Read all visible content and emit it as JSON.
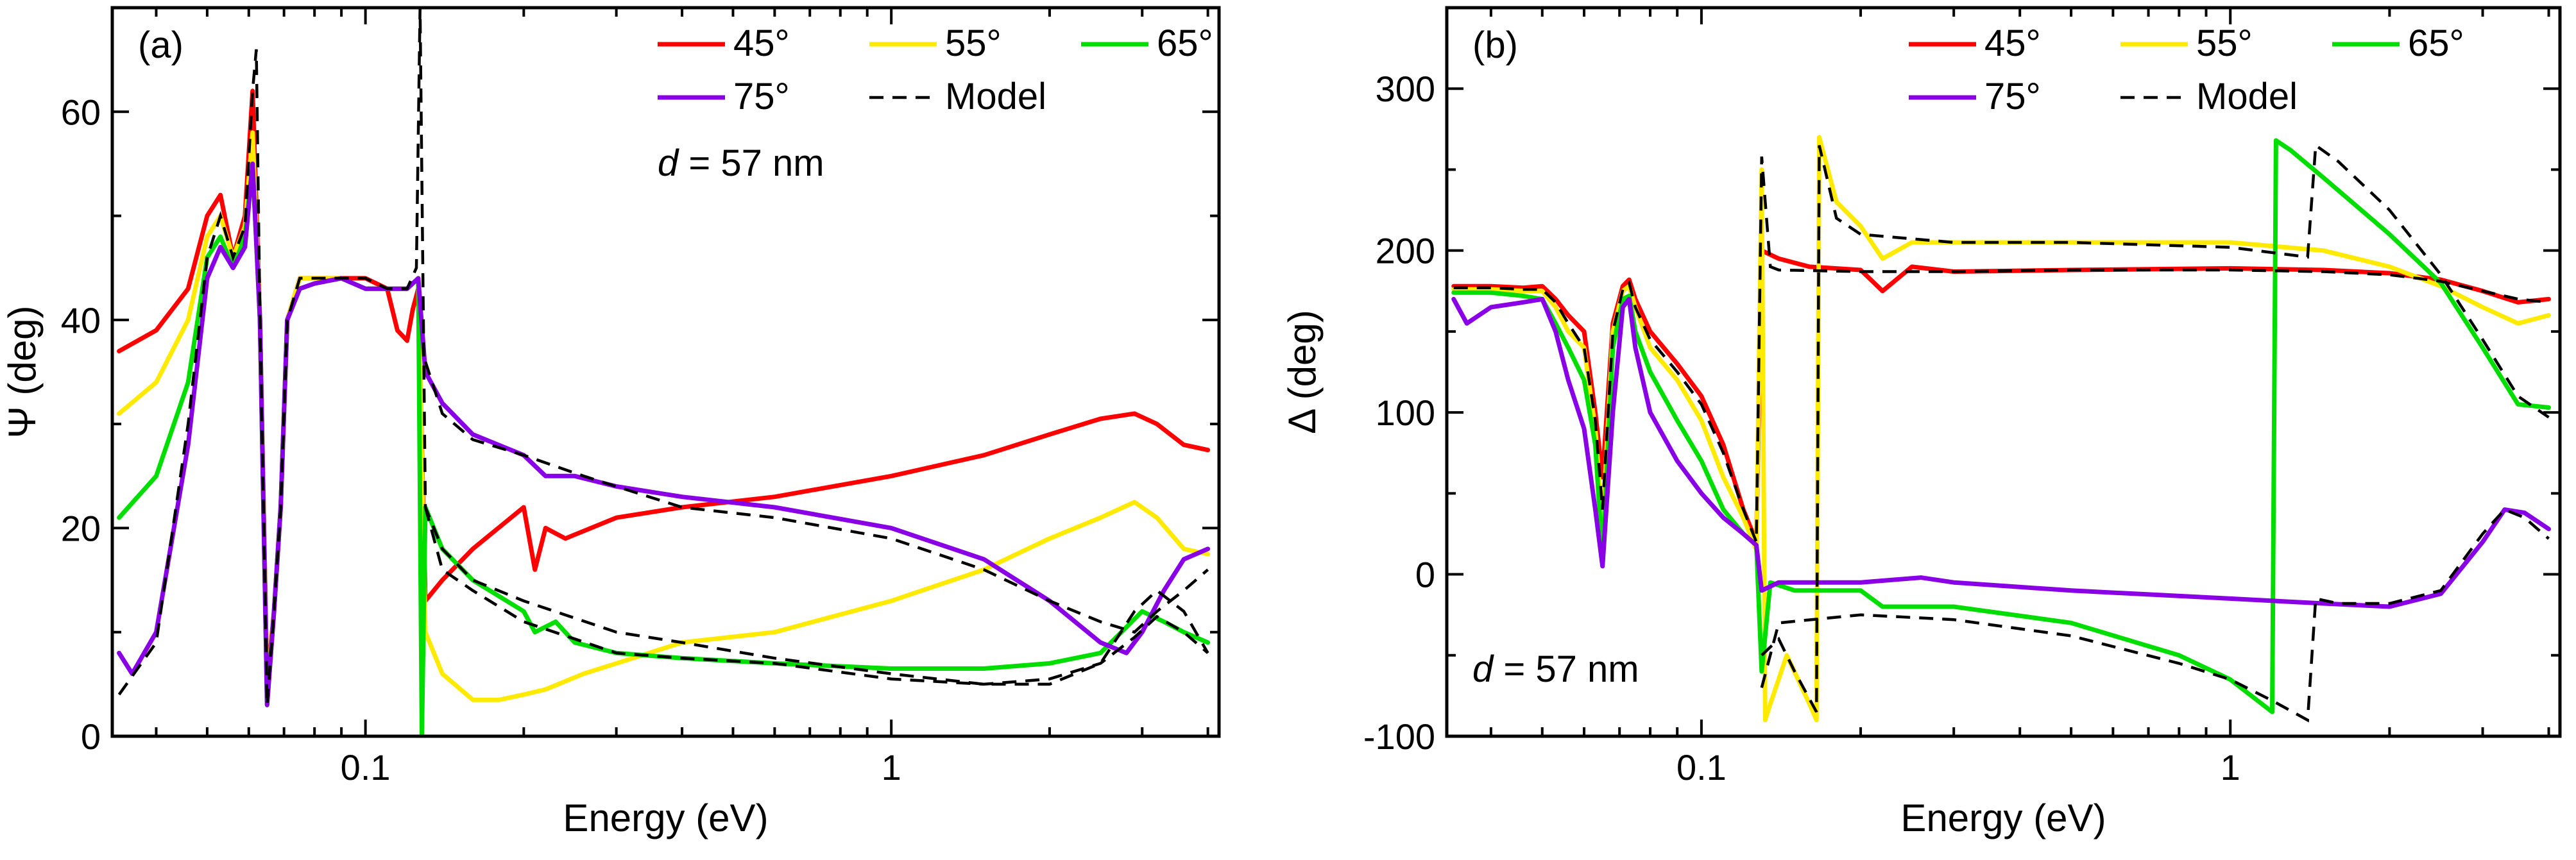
{
  "chart_data": [
    {
      "type": "line",
      "panel_label": "(a)",
      "xlabel": "Energy (eV)",
      "ylabel": "Ψ (deg)",
      "xscale": "log",
      "xlim": [
        0.033,
        4.2
      ],
      "ylim": [
        0,
        70
      ],
      "xticks": [
        {
          "value": 0.1,
          "label": "0.1"
        },
        {
          "value": 1,
          "label": "1"
        }
      ],
      "yticks": [
        {
          "value": 0,
          "label": "0"
        },
        {
          "value": 20,
          "label": "20"
        },
        {
          "value": 40,
          "label": "40"
        },
        {
          "value": 60,
          "label": "60"
        }
      ],
      "annotation": {
        "prefix": "d",
        "text": " = 57 nm"
      },
      "legend": [
        {
          "label": "45°",
          "color": "#ff0000",
          "style": "solid"
        },
        {
          "label": "55°",
          "color": "#ffea00",
          "style": "solid"
        },
        {
          "label": "65°",
          "color": "#00dd00",
          "style": "solid"
        },
        {
          "label": "75°",
          "color": "#8a00e6",
          "style": "solid"
        },
        {
          "label": "Model",
          "color": "#000000",
          "style": "dashed"
        }
      ],
      "series": [
        {
          "name": "45°",
          "color": "#ff0000",
          "x": [
            0.034,
            0.04,
            0.046,
            0.05,
            0.053,
            0.056,
            0.059,
            0.061,
            0.063,
            0.065,
            0.067,
            0.069,
            0.071,
            0.075,
            0.08,
            0.09,
            0.1,
            0.11,
            0.115,
            0.12,
            0.123,
            0.126,
            0.13,
            0.14,
            0.16,
            0.2,
            0.21,
            0.22,
            0.24,
            0.3,
            0.4,
            0.6,
            1,
            1.5,
            2,
            2.5,
            2.9,
            3.2,
            3.6,
            4.0
          ],
          "y": [
            37,
            39,
            43,
            50,
            52,
            46,
            50,
            62,
            40,
            5,
            12,
            22,
            40,
            44,
            44,
            44,
            44,
            43,
            39,
            38,
            41,
            43,
            13,
            15,
            18,
            22,
            16,
            20,
            19,
            21,
            22,
            23,
            25,
            27,
            29,
            30.5,
            31,
            30,
            28,
            27.5
          ]
        },
        {
          "name": "55°",
          "color": "#ffea00",
          "x": [
            0.034,
            0.04,
            0.046,
            0.05,
            0.053,
            0.056,
            0.059,
            0.061,
            0.063,
            0.065,
            0.067,
            0.069,
            0.071,
            0.075,
            0.08,
            0.09,
            0.1,
            0.11,
            0.12,
            0.126,
            0.13,
            0.14,
            0.16,
            0.18,
            0.2,
            0.22,
            0.26,
            0.3,
            0.4,
            0.6,
            1,
            1.5,
            2,
            2.5,
            2.9,
            3.2,
            3.6,
            4.0
          ],
          "y": [
            31,
            34,
            40,
            48,
            50,
            46,
            49,
            58,
            40,
            4,
            12,
            22,
            40,
            44,
            44,
            44,
            43,
            43,
            43,
            44,
            10,
            6,
            3.5,
            3.5,
            4,
            4.5,
            6,
            7,
            9,
            10,
            13,
            16,
            19,
            21,
            22.5,
            21,
            18,
            17.5
          ]
        },
        {
          "name": "65°",
          "color": "#00dd00",
          "x": [
            0.034,
            0.04,
            0.046,
            0.05,
            0.053,
            0.056,
            0.059,
            0.061,
            0.063,
            0.065,
            0.067,
            0.069,
            0.071,
            0.075,
            0.08,
            0.09,
            0.1,
            0.11,
            0.12,
            0.126,
            0.128,
            0.13,
            0.14,
            0.16,
            0.2,
            0.21,
            0.23,
            0.25,
            0.3,
            0.4,
            0.6,
            1,
            1.5,
            2,
            2.5,
            3.0,
            3.3,
            3.6,
            4.0
          ],
          "y": [
            21,
            25,
            34,
            46,
            48,
            45,
            48,
            55,
            40,
            3,
            12,
            22,
            40,
            43,
            43.5,
            44,
            43,
            43,
            43,
            44,
            0,
            22,
            18,
            15,
            12,
            10,
            11,
            9,
            8,
            7.5,
            7,
            6.5,
            6.5,
            7,
            8,
            12,
            11,
            10,
            9
          ]
        },
        {
          "name": "75°",
          "color": "#8a00e6",
          "x": [
            0.034,
            0.036,
            0.04,
            0.046,
            0.05,
            0.053,
            0.056,
            0.059,
            0.061,
            0.063,
            0.065,
            0.067,
            0.069,
            0.071,
            0.075,
            0.08,
            0.09,
            0.1,
            0.11,
            0.12,
            0.126,
            0.13,
            0.14,
            0.16,
            0.2,
            0.22,
            0.25,
            0.3,
            0.4,
            0.6,
            1,
            1.5,
            2,
            2.5,
            2.8,
            3.0,
            3.3,
            3.6,
            4.0
          ],
          "y": [
            8,
            6,
            10,
            28,
            44,
            47,
            45,
            47,
            55,
            40,
            3,
            12,
            22,
            40,
            43,
            43.5,
            44,
            43,
            43,
            43,
            44,
            35,
            32,
            29,
            27,
            25,
            25,
            24,
            23,
            22,
            20,
            17,
            13,
            9,
            8,
            10,
            14,
            17,
            18
          ]
        },
        {
          "name": "Model",
          "color": "#000000",
          "dashed": true,
          "x": [
            0.034,
            0.04,
            0.046,
            0.05,
            0.053,
            0.056,
            0.059,
            0.061,
            0.062,
            0.063,
            0.065,
            0.067,
            0.069,
            0.071,
            0.075,
            0.08,
            0.09,
            0.1,
            0.11,
            0.12,
            0.125,
            0.127,
            0.13,
            0.14,
            0.16,
            0.2,
            0.3,
            0.4,
            0.6,
            1,
            1.5,
            2,
            2.5,
            2.9,
            3.2,
            3.6,
            4.0
          ],
          "y": [
            4,
            9,
            30,
            46,
            50,
            46,
            49,
            62,
            66,
            40,
            3,
            12,
            22,
            40,
            44,
            44,
            44,
            44,
            43,
            43,
            45,
            70,
            22,
            18,
            15,
            13,
            10,
            9,
            7.5,
            6,
            5,
            5,
            7,
            12,
            14,
            12,
            8
          ]
        },
        {
          "name": "Model",
          "color": "#000000",
          "dashed": true,
          "x": [
            0.13,
            0.14,
            0.16,
            0.2,
            0.26,
            0.3,
            0.4,
            0.6,
            1,
            1.5,
            2,
            2.5,
            2.9,
            3.2,
            3.6,
            4.0
          ],
          "y": [
            36,
            31,
            28.5,
            27,
            25,
            24,
            22,
            21,
            19,
            16,
            13,
            11,
            10,
            12,
            14,
            16
          ]
        },
        {
          "name": "Model",
          "color": "#000000",
          "dashed": true,
          "x": [
            0.13,
            0.14,
            0.16,
            0.2,
            0.3,
            0.4,
            0.6,
            1,
            1.5,
            2,
            2.5,
            2.9,
            3.2,
            3.6,
            4.0
          ],
          "y": [
            22,
            16,
            14,
            11,
            8,
            7.5,
            7,
            5.5,
            5,
            5.5,
            7,
            9.5,
            11.5,
            10,
            8
          ]
        }
      ]
    },
    {
      "type": "line",
      "panel_label": "(b)",
      "xlabel": "Energy (eV)",
      "ylabel": "Δ (deg)",
      "xscale": "log",
      "xlim": [
        0.033,
        4.2
      ],
      "ylim": [
        -100,
        350
      ],
      "xticks": [
        {
          "value": 0.1,
          "label": "0.1"
        },
        {
          "value": 1,
          "label": "1"
        }
      ],
      "yticks": [
        {
          "value": -100,
          "label": "-100"
        },
        {
          "value": 0,
          "label": "0"
        },
        {
          "value": 100,
          "label": "100"
        },
        {
          "value": 200,
          "label": "200"
        },
        {
          "value": 300,
          "label": "300"
        }
      ],
      "annotation": {
        "prefix": "d",
        "text": " = 57 nm"
      },
      "legend": [
        {
          "label": "45°",
          "color": "#ff0000",
          "style": "solid"
        },
        {
          "label": "55°",
          "color": "#ffea00",
          "style": "solid"
        },
        {
          "label": "65°",
          "color": "#00dd00",
          "style": "solid"
        },
        {
          "label": "75°",
          "color": "#8a00e6",
          "style": "solid"
        },
        {
          "label": "Model",
          "color": "#000000",
          "style": "dashed"
        }
      ],
      "series": [
        {
          "name": "45°",
          "color": "#ff0000",
          "x": [
            0.034,
            0.04,
            0.046,
            0.05,
            0.053,
            0.056,
            0.06,
            0.063,
            0.065,
            0.068,
            0.071,
            0.073,
            0.075,
            0.08,
            0.09,
            0.1,
            0.11,
            0.12,
            0.127,
            0.13,
            0.14,
            0.16,
            0.2,
            0.22,
            0.25,
            0.3,
            0.5,
            1,
            1.5,
            2,
            2.5,
            3.0,
            3.5,
            4.0
          ],
          "y": [
            178,
            178,
            177,
            178,
            170,
            160,
            150,
            100,
            60,
            155,
            178,
            182,
            170,
            150,
            130,
            110,
            80,
            40,
            20,
            200,
            195,
            190,
            188,
            175,
            190,
            187,
            188,
            189,
            188,
            186,
            182,
            175,
            168,
            170
          ]
        },
        {
          "name": "55°",
          "color": "#ffea00",
          "x": [
            0.034,
            0.04,
            0.046,
            0.05,
            0.053,
            0.056,
            0.06,
            0.063,
            0.065,
            0.068,
            0.071,
            0.073,
            0.075,
            0.08,
            0.09,
            0.1,
            0.11,
            0.12,
            0.127,
            0.13,
            0.132,
            0.135,
            0.145,
            0.16,
            0.165,
            0.167,
            0.18,
            0.2,
            0.22,
            0.25,
            0.3,
            0.5,
            1,
            1.5,
            2,
            2.5,
            3.0,
            3.5,
            4.0
          ],
          "y": [
            176,
            176,
            175,
            175,
            165,
            150,
            140,
            90,
            30,
            150,
            175,
            178,
            165,
            140,
            120,
            95,
            60,
            35,
            15,
            250,
            -90,
            -80,
            -50,
            -80,
            -90,
            270,
            230,
            215,
            195,
            205,
            205,
            205,
            205,
            200,
            190,
            178,
            165,
            155,
            160
          ]
        },
        {
          "name": "65°",
          "color": "#00dd00",
          "x": [
            0.034,
            0.04,
            0.046,
            0.05,
            0.053,
            0.056,
            0.06,
            0.063,
            0.065,
            0.068,
            0.071,
            0.073,
            0.075,
            0.08,
            0.09,
            0.1,
            0.11,
            0.12,
            0.127,
            0.13,
            0.135,
            0.15,
            0.2,
            0.22,
            0.3,
            0.5,
            0.8,
            1.0,
            1.2,
            1.22,
            1.3,
            1.5,
            2.0,
            2.5,
            3.0,
            3.5,
            4.0
          ],
          "y": [
            174,
            174,
            172,
            170,
            155,
            140,
            120,
            80,
            10,
            140,
            170,
            172,
            150,
            125,
            95,
            70,
            40,
            25,
            18,
            -60,
            -5,
            -10,
            -10,
            -20,
            -20,
            -30,
            -50,
            -65,
            -85,
            268,
            262,
            245,
            210,
            180,
            140,
            105,
            103
          ]
        },
        {
          "name": "75°",
          "color": "#8a00e6",
          "x": [
            0.034,
            0.036,
            0.04,
            0.046,
            0.05,
            0.053,
            0.056,
            0.06,
            0.063,
            0.065,
            0.068,
            0.071,
            0.073,
            0.075,
            0.08,
            0.09,
            0.1,
            0.11,
            0.12,
            0.127,
            0.13,
            0.14,
            0.2,
            0.26,
            0.3,
            0.5,
            1,
            1.5,
            2,
            2.5,
            3.0,
            3.3,
            3.6,
            4.0
          ],
          "y": [
            170,
            155,
            165,
            168,
            170,
            150,
            120,
            90,
            40,
            5,
            100,
            165,
            170,
            140,
            100,
            70,
            50,
            35,
            25,
            18,
            -10,
            -5,
            -5,
            -2,
            -5,
            -10,
            -15,
            -18,
            -20,
            -12,
            20,
            40,
            38,
            28
          ]
        },
        {
          "name": "Model",
          "color": "#000000",
          "dashed": true,
          "x": [
            0.034,
            0.04,
            0.046,
            0.05,
            0.053,
            0.056,
            0.06,
            0.063,
            0.065,
            0.068,
            0.071,
            0.073,
            0.075,
            0.08,
            0.09,
            0.1,
            0.11,
            0.12,
            0.127,
            0.13,
            0.135,
            0.14,
            0.2,
            0.3,
            0.5,
            1,
            1.5,
            2,
            2.5,
            3.0,
            3.5,
            4.0
          ],
          "y": [
            177,
            177,
            176,
            176,
            168,
            155,
            140,
            95,
            40,
            150,
            176,
            180,
            165,
            145,
            125,
            105,
            75,
            40,
            20,
            258,
            190,
            188,
            187,
            187,
            188,
            188,
            187,
            185,
            181,
            175,
            170,
            168
          ]
        },
        {
          "name": "Model",
          "color": "#000000",
          "dashed": true,
          "x": [
            0.13,
            0.14,
            0.15,
            0.165,
            0.167,
            0.18,
            0.2,
            0.3,
            0.5,
            1,
            1.4,
            1.45,
            1.6,
            2,
            2.5,
            3.0,
            3.5,
            4.0
          ],
          "y": [
            -50,
            -40,
            -60,
            -85,
            265,
            220,
            210,
            205,
            205,
            202,
            196,
            265,
            255,
            225,
            185,
            145,
            110,
            97
          ]
        },
        {
          "name": "Model",
          "color": "#000000",
          "dashed": true,
          "x": [
            0.13,
            0.14,
            0.2,
            0.3,
            0.5,
            0.8,
            1.0,
            1.2,
            1.4,
            1.45,
            1.6,
            2,
            2.5,
            3.0,
            3.3,
            3.6,
            4.0
          ],
          "y": [
            -70,
            -30,
            -25,
            -28,
            -38,
            -55,
            -65,
            -78,
            -90,
            -15,
            -18,
            -18,
            -10,
            25,
            40,
            35,
            22
          ]
        }
      ]
    }
  ]
}
